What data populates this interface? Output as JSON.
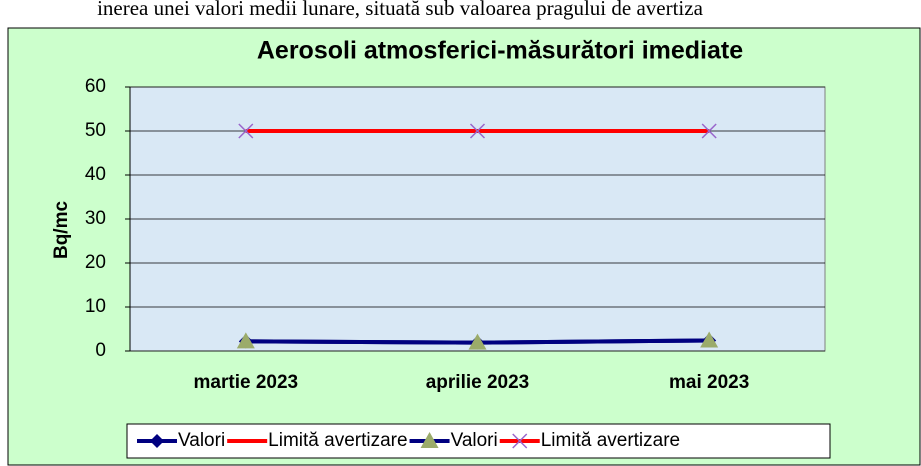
{
  "document_text": "inerea unei valori medii lunare, situată sub valoarea pragului de avertiza",
  "chart_data": {
    "type": "line",
    "title": "Aerosoli atmosferici-măsurători imediate",
    "y_label": "Bq/mc",
    "categories": [
      "martie 2023",
      "aprilie 2023",
      "mai 2023"
    ],
    "series": [
      {
        "name": "Valori",
        "color": "#000080",
        "marker": "diamond",
        "marker_color": "#000080",
        "values": [
          2.2,
          1.9,
          2.4
        ]
      },
      {
        "name": "Limită avertizare",
        "color": "#ff0000",
        "marker": "none",
        "marker_color": "#ff0000",
        "values": [
          50,
          50,
          50
        ]
      },
      {
        "name": "Valori",
        "color": "#000080",
        "marker": "triangle",
        "marker_color": "#9bab6a",
        "values": [
          2.2,
          1.9,
          2.4
        ]
      },
      {
        "name": "Limită avertizare",
        "color": "#ff0000",
        "marker": "x",
        "marker_color": "#9966cc",
        "values": [
          50,
          50,
          50
        ]
      }
    ],
    "ylim": [
      0,
      60
    ],
    "yticks": [
      0,
      10,
      20,
      30,
      40,
      50,
      60
    ],
    "grid": true,
    "legend": "bottom"
  }
}
